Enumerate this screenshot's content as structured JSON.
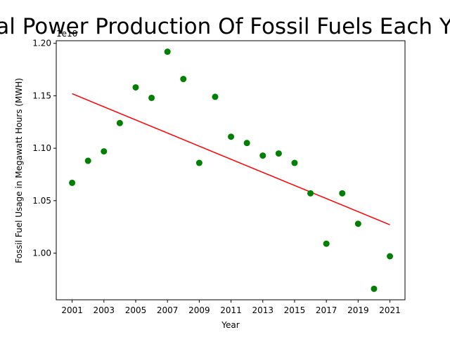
{
  "chart_data": {
    "type": "scatter",
    "title": "Total Power Production Of Fossil Fuels Each Year",
    "xlabel": "Year",
    "ylabel": "Fossil Fuel Usage in Megawatt Hours (MWH)",
    "y_offset_label": "1e10",
    "xlim": [
      2000.0,
      2021.95
    ],
    "ylim": [
      0.9555,
      1.2025
    ],
    "xticks": [
      2001,
      2003,
      2005,
      2007,
      2009,
      2011,
      2013,
      2015,
      2017,
      2019,
      2021
    ],
    "yticks": [
      1.0,
      1.05,
      1.1,
      1.15,
      1.2
    ],
    "ytick_labels": [
      "1.00",
      "1.05",
      "1.10",
      "1.15",
      "1.20"
    ],
    "grid": false,
    "point_color": "#008000",
    "trend_color": "#ff0000",
    "series": [
      {
        "x": [
          2001,
          2002,
          2003,
          2004,
          2005,
          2006,
          2007,
          2008,
          2009,
          2010,
          2011,
          2012,
          2013,
          2014,
          2015,
          2016,
          2017,
          2018,
          2019,
          2020,
          2021
        ],
        "y": [
          1.067,
          1.088,
          1.097,
          1.124,
          1.158,
          1.148,
          1.192,
          1.166,
          1.086,
          1.149,
          1.111,
          1.105,
          1.093,
          1.095,
          1.086,
          1.057,
          1.009,
          1.057,
          1.028,
          0.966,
          0.997
        ]
      }
    ],
    "trendline": {
      "x": [
        2001,
        2021
      ],
      "y": [
        1.152,
        1.027
      ]
    }
  }
}
